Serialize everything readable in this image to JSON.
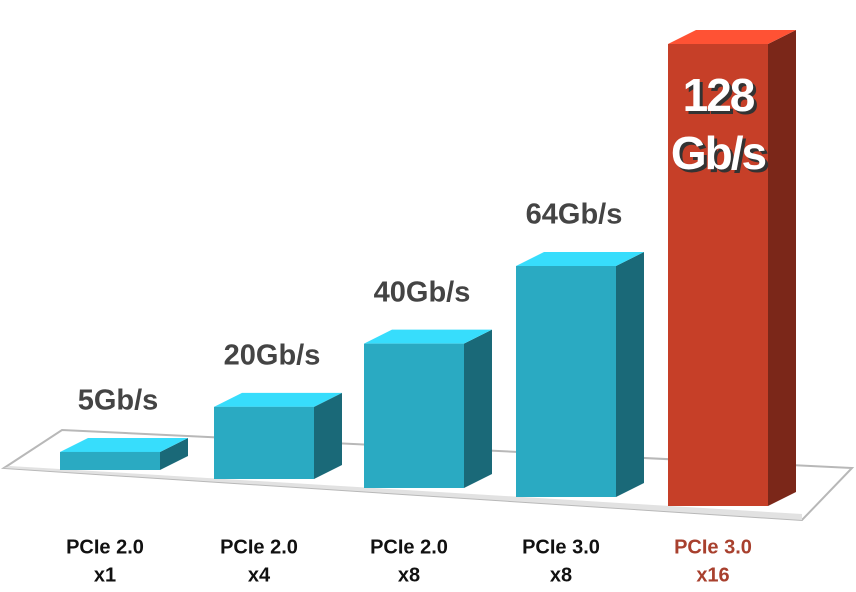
{
  "chart_data": {
    "type": "bar3d",
    "categories": [
      [
        "PCIe 2.0",
        "x1"
      ],
      [
        "PCIe 2.0",
        "x4"
      ],
      [
        "PCIe 2.0",
        "x8"
      ],
      [
        "PCIe 3.0",
        "x8"
      ],
      [
        "PCIe 3.0",
        "x16"
      ]
    ],
    "values": [
      5,
      20,
      40,
      64,
      128
    ],
    "value_labels": [
      [
        "5Gb/s"
      ],
      [
        "20Gb/s"
      ],
      [
        "40Gb/s"
      ],
      [
        "64Gb/s"
      ],
      [
        "128",
        "Gb/s"
      ]
    ],
    "colors": [
      "#2aaac2",
      "#2aaac2",
      "#2aaac2",
      "#2aaac2",
      "#c63f28"
    ],
    "label_colors": [
      "#111111",
      "#111111",
      "#111111",
      "#111111",
      "#a8402e"
    ]
  }
}
